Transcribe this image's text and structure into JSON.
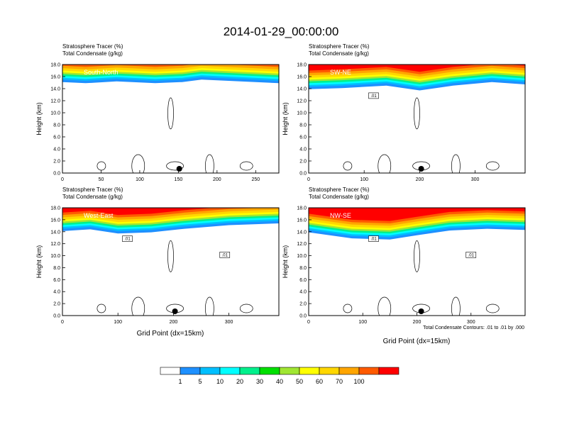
{
  "figure_title": "2014-01-29_00:00:00",
  "panel_line1": "Stratosphere Tracer   (%)",
  "panel_line2": "Total Condensate   (g/kg)",
  "ylabel": "Height (km)",
  "xlabel": "Grid Point (dx=15km)",
  "contour_note": "Total Condensate Contours: .01 to .01 by .000",
  "colorbar": {
    "colors": [
      "#ffffff",
      "#1e90ff",
      "#00bfff",
      "#00ffff",
      "#00f08c",
      "#00e000",
      "#a0e632",
      "#ffff00",
      "#ffd700",
      "#ffa500",
      "#ff5a00",
      "#ff0000"
    ],
    "labels": [
      "1",
      "5",
      "10",
      "20",
      "30",
      "40",
      "50",
      "60",
      "70",
      "100"
    ]
  },
  "chart_data": [
    {
      "type": "heatmap",
      "name": "South-North",
      "xlim": [
        0,
        280
      ],
      "xticks": [
        0,
        50,
        100,
        150,
        200,
        250
      ],
      "ylim": [
        0,
        18
      ],
      "yticks": [
        "0.0",
        "2.0",
        "4.0",
        "6.0",
        "8.0",
        "10.0",
        "12.0",
        "14.0",
        "16.0",
        "18.0"
      ],
      "tracer_base_km": [
        [
          0,
          15.2
        ],
        [
          30,
          15.0
        ],
        [
          70,
          15.3
        ],
        [
          120,
          15.0
        ],
        [
          155,
          15.2
        ],
        [
          180,
          15.6
        ],
        [
          230,
          15.3
        ],
        [
          280,
          15.0
        ]
      ],
      "contour_labels": []
    },
    {
      "type": "heatmap",
      "name": "SW-NE",
      "xlim": [
        0,
        390
      ],
      "xticks": [
        0,
        100,
        200,
        300
      ],
      "ylim": [
        0,
        18
      ],
      "yticks": [
        "0.0",
        "2.0",
        "4.0",
        "6.0",
        "8.0",
        "10.0",
        "12.0",
        "14.0",
        "16.0",
        "18.0"
      ],
      "tracer_base_km": [
        [
          0,
          14.0
        ],
        [
          60,
          14.2
        ],
        [
          140,
          14.6
        ],
        [
          200,
          13.8
        ],
        [
          260,
          14.6
        ],
        [
          330,
          15.2
        ],
        [
          390,
          14.8
        ]
      ],
      "contour_labels": [
        ".01"
      ]
    },
    {
      "type": "heatmap",
      "name": "West-East",
      "xlim": [
        0,
        390
      ],
      "xticks": [
        0,
        100,
        200,
        300
      ],
      "ylim": [
        0,
        18
      ],
      "yticks": [
        "0.0",
        "2.0",
        "4.0",
        "6.0",
        "8.0",
        "10.0",
        "12.0",
        "14.0",
        "16.0",
        "18.0"
      ],
      "tracer_base_km": [
        [
          0,
          14.2
        ],
        [
          50,
          14.5
        ],
        [
          100,
          13.8
        ],
        [
          160,
          14.0
        ],
        [
          220,
          14.6
        ],
        [
          300,
          15.2
        ],
        [
          390,
          15.5
        ]
      ],
      "contour_labels": [
        ".01",
        ".01"
      ]
    },
    {
      "type": "heatmap",
      "name": "NW-SE",
      "xlim": [
        0,
        400
      ],
      "xticks": [
        0,
        100,
        200,
        300
      ],
      "ylim": [
        0,
        18
      ],
      "yticks": [
        "0.0",
        "2.0",
        "4.0",
        "6.0",
        "8.0",
        "10.0",
        "12.0",
        "14.0",
        "16.0",
        "18.0"
      ],
      "tracer_base_km": [
        [
          0,
          14.0
        ],
        [
          80,
          13.0
        ],
        [
          150,
          12.8
        ],
        [
          200,
          13.5
        ],
        [
          260,
          14.3
        ],
        [
          330,
          14.6
        ],
        [
          400,
          14.4
        ]
      ],
      "contour_labels": [
        ".01",
        ".01"
      ]
    }
  ]
}
